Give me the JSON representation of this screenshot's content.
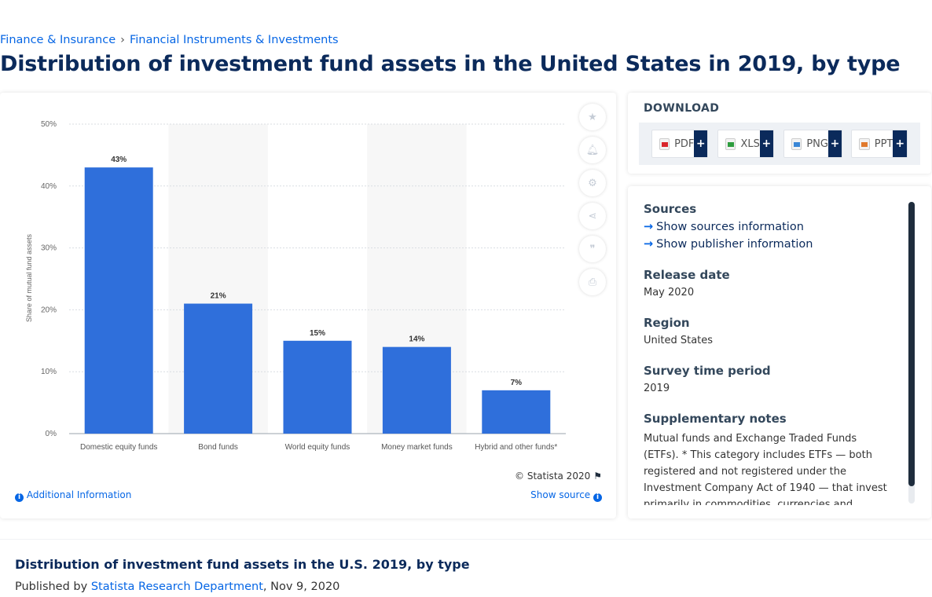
{
  "breadcrumb": {
    "item1": "Finance & Insurance",
    "item2": "Financial Instruments & Investments",
    "sep": "›"
  },
  "page_title": "Distribution of investment fund assets in the United States in 2019, by type",
  "chart_data": {
    "type": "bar",
    "categories": [
      "Domestic equity funds",
      "Bond funds",
      "World equity funds",
      "Money market funds",
      "Hybrid and other funds*"
    ],
    "values": [
      43,
      21,
      15,
      14,
      7
    ],
    "value_labels": [
      "43%",
      "21%",
      "15%",
      "14%",
      "7%"
    ],
    "ylabel": "Share of mutual fund assets",
    "yticks": [
      "0%",
      "10%",
      "20%",
      "30%",
      "40%",
      "50%"
    ],
    "ylim": [
      0,
      50
    ],
    "bar_color": "#2f6fdb",
    "grid": true
  },
  "tools": {
    "star": "star-icon",
    "bell": "bell-icon",
    "gear": "gear-icon",
    "share": "share-icon",
    "quote": "quote-icon",
    "print": "print-icon"
  },
  "credits": "© Statista 2020",
  "additional_info": "Additional Information",
  "show_source": "Show source",
  "download": {
    "title": "DOWNLOAD",
    "pdf": "PDF",
    "xls": "XLS",
    "png": "PNG",
    "ppt": "PPT",
    "plus": "+"
  },
  "info": {
    "sources_h": "Sources",
    "show_sources": "Show sources information",
    "show_publisher": "Show publisher information",
    "release_h": "Release date",
    "release_v": "May 2020",
    "region_h": "Region",
    "region_v": "United States",
    "survey_h": "Survey time period",
    "survey_v": "2019",
    "notes_h": "Supplementary notes",
    "notes_v": "Mutual funds and Exchange Traded Funds (ETFs). * This category includes ETFs — both registered and not registered under the Investment Company Act of 1940 — that invest primarily in commodities, currencies and futures."
  },
  "footer": {
    "title": "Distribution of investment fund assets in the U.S. 2019, by type",
    "published_by": "Published by",
    "publisher": "Statista Research Department",
    "date": ", Nov 9, 2020"
  }
}
